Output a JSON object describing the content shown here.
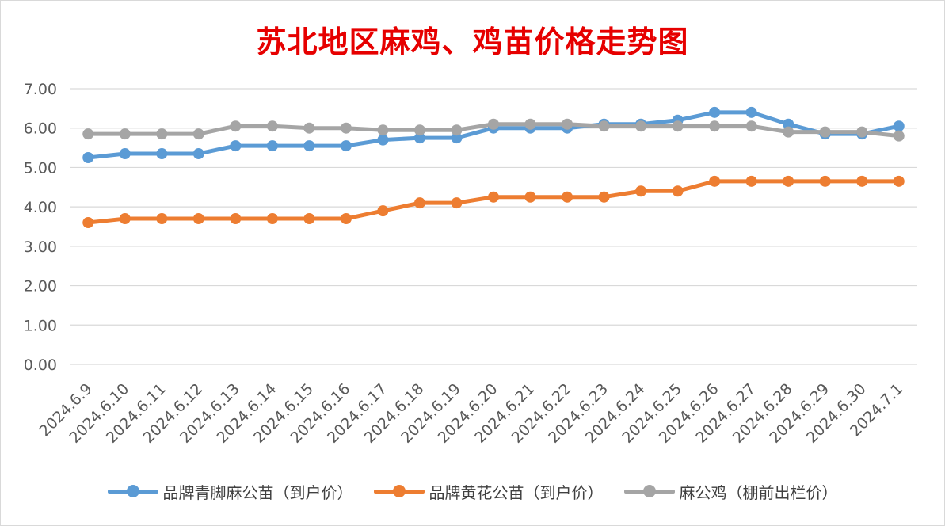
{
  "chart_data": {
    "type": "line",
    "title": "苏北地区麻鸡、鸡苗价格走势图",
    "categories": [
      "2024.6.9",
      "2024.6.10",
      "2024.6.11",
      "2024.6.12",
      "2024.6.13",
      "2024.6.14",
      "2024.6.15",
      "2024.6.16",
      "2024.6.17",
      "2024.6.18",
      "2024.6.19",
      "2024.6.20",
      "2024.6.21",
      "2024.6.22",
      "2024.6.23",
      "2024.6.24",
      "2024.6.25",
      "2024.6.26",
      "2024.6.27",
      "2024.6.28",
      "2024.6.29",
      "2024.6.30",
      "2024.7.1"
    ],
    "y_ticks": [
      "0.00",
      "1.00",
      "2.00",
      "3.00",
      "4.00",
      "5.00",
      "6.00",
      "7.00"
    ],
    "ylim": [
      0,
      7
    ],
    "grid": true,
    "legend_position": "bottom",
    "series": [
      {
        "name": "品牌青脚麻公苗（到户价）",
        "color": "#5b9bd5",
        "values": [
          5.25,
          5.35,
          5.35,
          5.35,
          5.55,
          5.55,
          5.55,
          5.55,
          5.7,
          5.75,
          5.75,
          6.0,
          6.0,
          6.0,
          6.1,
          6.1,
          6.2,
          6.4,
          6.4,
          6.1,
          5.85,
          5.85,
          6.05
        ]
      },
      {
        "name": "品牌黄花公苗（到户价）",
        "color": "#ed7d31",
        "values": [
          3.6,
          3.7,
          3.7,
          3.7,
          3.7,
          3.7,
          3.7,
          3.7,
          3.9,
          4.1,
          4.1,
          4.25,
          4.25,
          4.25,
          4.25,
          4.4,
          4.4,
          4.65,
          4.65,
          4.65,
          4.65,
          4.65,
          4.65
        ]
      },
      {
        "name": "麻公鸡（棚前出栏价）",
        "color": "#a5a5a5",
        "values": [
          5.85,
          5.85,
          5.85,
          5.85,
          6.05,
          6.05,
          6.0,
          6.0,
          5.95,
          5.95,
          5.95,
          6.1,
          6.1,
          6.1,
          6.05,
          6.05,
          6.05,
          6.05,
          6.05,
          5.9,
          5.9,
          5.9,
          5.8
        ]
      }
    ]
  }
}
